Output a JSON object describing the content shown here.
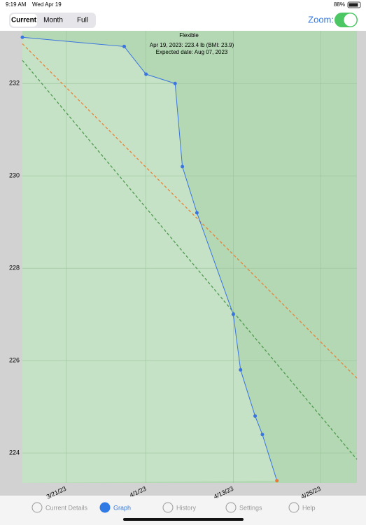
{
  "status_bar": {
    "time": "9:19 AM",
    "date": "Wed Apr 19",
    "battery": "88%"
  },
  "toolbar": {
    "segments": [
      "Current",
      "Month",
      "Full"
    ],
    "selected": "Current",
    "zoom_label": "Zoom:"
  },
  "chart_data": {
    "type": "line",
    "title": "Flexible",
    "subtitle": "Apr 19, 2023: 223.4 lb (BMI: 23.9)",
    "annotation": "Expected date: Aug 07, 2023",
    "xlim": [
      "3/15/23",
      "4/30/23"
    ],
    "xticks": [
      "3/21/23",
      "4/1/23",
      "4/13/23",
      "4/25/23"
    ],
    "ylim": [
      223.35,
      233.14
    ],
    "yticks": [
      224,
      226,
      228,
      230,
      232
    ],
    "grid": true,
    "series": [
      {
        "color": "#3a74e0",
        "dashed": false,
        "markers": true,
        "x": [
          "3/15/23",
          "3/29/23",
          "4/1/23",
          "4/5/23",
          "4/6/23",
          "4/8/23",
          "4/13/23",
          "4/14/23",
          "4/16/23",
          "4/17/23",
          "4/19/23"
        ],
        "values": [
          233.0,
          232.8,
          232.2,
          232.0,
          230.2,
          229.2,
          227.0,
          225.8,
          224.8,
          224.4,
          223.4
        ],
        "marker_colors": [
          "#3a74e0",
          "#3a74e0",
          "#3a74e0",
          "#3a74e0",
          "#3a74e0",
          "#3a74e0",
          "#3a74e0",
          "#3a74e0",
          "#3a74e0",
          "#3a74e0",
          "#e8793a"
        ]
      },
      {
        "color": "#e8843a",
        "dashed": true,
        "markers": false,
        "x": [
          "3/15/23",
          "4/30/23"
        ],
        "values": [
          232.86,
          225.62
        ]
      },
      {
        "color": "#4f9a4f",
        "dashed": true,
        "markers": false,
        "x": [
          "3/15/23",
          "4/30/23"
        ],
        "values": [
          232.5,
          223.86
        ]
      }
    ]
  },
  "tab_bar": {
    "tabs": [
      "Current Details",
      "Graph",
      "History",
      "Settings",
      "Help"
    ],
    "selected": "Graph"
  }
}
